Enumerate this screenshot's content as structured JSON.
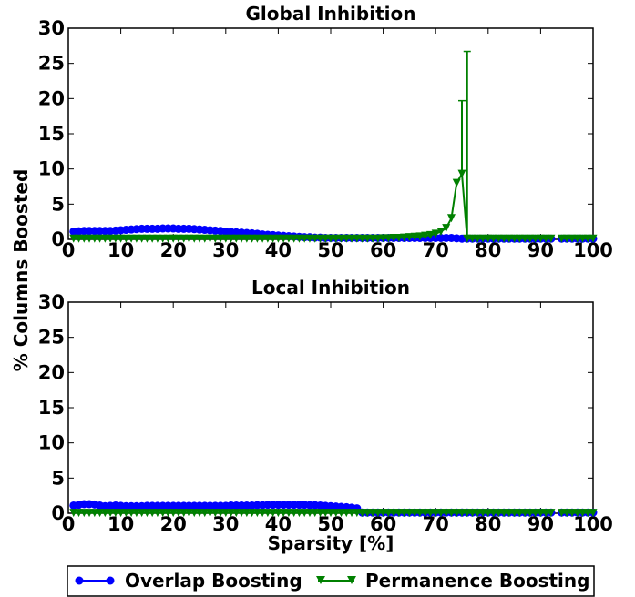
{
  "chart_data": [
    {
      "type": "line",
      "title": "Global Inhibition",
      "xlabel": "",
      "ylabel": "% Columns Boosted",
      "xlim": [
        0,
        100
      ],
      "ylim": [
        0,
        30
      ],
      "xticks": [
        0,
        10,
        20,
        30,
        40,
        50,
        60,
        70,
        80,
        90,
        100
      ],
      "yticks": [
        0,
        5,
        10,
        15,
        20,
        25,
        30
      ],
      "grid": false,
      "series": [
        {
          "name": "Overlap Boosting",
          "color": "#0000ff",
          "marker": "circle",
          "x": [
            1,
            2,
            3,
            4,
            5,
            6,
            7,
            8,
            9,
            10,
            11,
            12,
            13,
            14,
            15,
            16,
            17,
            18,
            19,
            20,
            21,
            22,
            23,
            24,
            25,
            26,
            27,
            28,
            29,
            30,
            31,
            32,
            33,
            34,
            35,
            36,
            37,
            38,
            39,
            40,
            41,
            42,
            43,
            44,
            45,
            46,
            47,
            48,
            49,
            50,
            51,
            52,
            53,
            54,
            55,
            56,
            57,
            58,
            59,
            60,
            61,
            62,
            63,
            64,
            65,
            66,
            67,
            68,
            69,
            70,
            71,
            72,
            73,
            74,
            75,
            76,
            77,
            78,
            79,
            80,
            81,
            82,
            83,
            84,
            85,
            86,
            87,
            88,
            89,
            90,
            91,
            92,
            94,
            95,
            96,
            97,
            98,
            99,
            100
          ],
          "y": [
            1.1,
            1.15,
            1.2,
            1.2,
            1.2,
            1.2,
            1.2,
            1.2,
            1.25,
            1.3,
            1.35,
            1.4,
            1.45,
            1.5,
            1.5,
            1.5,
            1.5,
            1.55,
            1.55,
            1.55,
            1.5,
            1.5,
            1.5,
            1.45,
            1.4,
            1.35,
            1.3,
            1.25,
            1.2,
            1.1,
            1.05,
            1.0,
            0.95,
            0.9,
            0.85,
            0.8,
            0.7,
            0.65,
            0.6,
            0.55,
            0.5,
            0.45,
            0.4,
            0.35,
            0.3,
            0.3,
            0.25,
            0.25,
            0.2,
            0.2,
            0.2,
            0.2,
            0.2,
            0.2,
            0.2,
            0.2,
            0.2,
            0.2,
            0.2,
            0.2,
            0.2,
            0.2,
            0.2,
            0.2,
            0.2,
            0.2,
            0.2,
            0.2,
            0.2,
            0.2,
            0.2,
            0.2,
            0.2,
            0.15,
            0.1,
            0.1,
            0.1,
            0.1,
            0.1,
            0.1,
            0.1,
            0.1,
            0.1,
            0.1,
            0.1,
            0.1,
            0.1,
            0.1,
            0.1,
            0.1,
            0.1,
            0.1,
            0.1,
            0.1,
            0.1,
            0.1,
            0.1,
            0.1,
            0.1
          ]
        },
        {
          "name": "Permanence Boosting",
          "color": "#008000",
          "marker": "triangle-down",
          "x": [
            1,
            2,
            3,
            4,
            5,
            6,
            7,
            8,
            9,
            10,
            11,
            12,
            13,
            14,
            15,
            16,
            17,
            18,
            19,
            20,
            21,
            22,
            23,
            24,
            25,
            26,
            27,
            28,
            29,
            30,
            31,
            32,
            33,
            34,
            35,
            36,
            37,
            38,
            39,
            40,
            41,
            42,
            43,
            44,
            45,
            46,
            47,
            48,
            49,
            50,
            51,
            52,
            53,
            54,
            55,
            56,
            57,
            58,
            59,
            60,
            61,
            62,
            63,
            64,
            65,
            66,
            67,
            68,
            69,
            70,
            71,
            72,
            73,
            74,
            75,
            76,
            77,
            78,
            79,
            80,
            81,
            82,
            83,
            84,
            85,
            86,
            87,
            88,
            89,
            90,
            91,
            92,
            94,
            95,
            96,
            97,
            98,
            99,
            100
          ],
          "y": [
            0.1,
            0.1,
            0.1,
            0.1,
            0.1,
            0.1,
            0.1,
            0.1,
            0.1,
            0.1,
            0.1,
            0.1,
            0.1,
            0.1,
            0.1,
            0.1,
            0.1,
            0.1,
            0.1,
            0.1,
            0.1,
            0.1,
            0.1,
            0.1,
            0.1,
            0.1,
            0.1,
            0.1,
            0.1,
            0.1,
            0.1,
            0.1,
            0.1,
            0.1,
            0.1,
            0.1,
            0.1,
            0.1,
            0.1,
            0.1,
            0.1,
            0.1,
            0.1,
            0.1,
            0.1,
            0.1,
            0.1,
            0.1,
            0.1,
            0.1,
            0.1,
            0.1,
            0.1,
            0.1,
            0.1,
            0.1,
            0.1,
            0.1,
            0.1,
            0.15,
            0.15,
            0.2,
            0.2,
            0.25,
            0.3,
            0.35,
            0.4,
            0.5,
            0.6,
            0.8,
            1.1,
            1.6,
            3.0,
            8.0,
            9.3,
            0.1,
            0.1,
            0.1,
            0.1,
            0.1,
            0.1,
            0.1,
            0.1,
            0.1,
            0.1,
            0.1,
            0.1,
            0.1,
            0.1,
            0.1,
            0.1,
            0.1,
            0.1,
            0.1,
            0.1,
            0.1,
            0.1,
            0.1,
            0.1
          ],
          "error_bars": [
            {
              "x": 75,
              "upper": 19.7
            },
            {
              "x": 76,
              "upper": 26.7
            }
          ]
        }
      ]
    },
    {
      "type": "line",
      "title": "Local Inhibition",
      "xlabel": "Sparsity [%]",
      "ylabel": "% Columns Boosted",
      "xlim": [
        0,
        100
      ],
      "ylim": [
        0,
        30
      ],
      "xticks": [
        0,
        10,
        20,
        30,
        40,
        50,
        60,
        70,
        80,
        90,
        100
      ],
      "yticks": [
        0,
        5,
        10,
        15,
        20,
        25,
        30
      ],
      "grid": false,
      "series": [
        {
          "name": "Overlap Boosting",
          "color": "#0000ff",
          "marker": "circle",
          "x": [
            1,
            2,
            3,
            4,
            5,
            6,
            7,
            8,
            9,
            10,
            11,
            12,
            13,
            14,
            15,
            16,
            17,
            18,
            19,
            20,
            21,
            22,
            23,
            24,
            25,
            26,
            27,
            28,
            29,
            30,
            31,
            32,
            33,
            34,
            35,
            36,
            37,
            38,
            39,
            40,
            41,
            42,
            43,
            44,
            45,
            46,
            47,
            48,
            49,
            50,
            51,
            52,
            53,
            54,
            55,
            56,
            57,
            58,
            59,
            60,
            61,
            62,
            63,
            64,
            65,
            66,
            67,
            68,
            69,
            70,
            71,
            72,
            73,
            74,
            75,
            76,
            77,
            78,
            79,
            80,
            81,
            82,
            83,
            84,
            85,
            86,
            87,
            88,
            89,
            90,
            91,
            92,
            94,
            95,
            96,
            97,
            98,
            99,
            100
          ],
          "y": [
            1.1,
            1.2,
            1.3,
            1.3,
            1.25,
            1.1,
            1.0,
            1.05,
            1.1,
            1.05,
            1.0,
            1.0,
            1.0,
            1.0,
            1.05,
            1.05,
            1.05,
            1.05,
            1.05,
            1.05,
            1.05,
            1.05,
            1.05,
            1.05,
            1.05,
            1.05,
            1.05,
            1.05,
            1.05,
            1.05,
            1.1,
            1.1,
            1.1,
            1.1,
            1.1,
            1.15,
            1.15,
            1.2,
            1.2,
            1.2,
            1.2,
            1.2,
            1.2,
            1.2,
            1.2,
            1.15,
            1.15,
            1.1,
            1.05,
            1.0,
            0.95,
            0.9,
            0.85,
            0.8,
            0.7,
            0.1,
            0.1,
            0.1,
            0.1,
            0.1,
            0.1,
            0.1,
            0.1,
            0.1,
            0.1,
            0.1,
            0.1,
            0.1,
            0.1,
            0.1,
            0.1,
            0.1,
            0.1,
            0.1,
            0.1,
            0.1,
            0.1,
            0.1,
            0.1,
            0.1,
            0.1,
            0.1,
            0.1,
            0.1,
            0.1,
            0.1,
            0.1,
            0.1,
            0.1,
            0.1,
            0.1,
            0.1,
            0.1,
            0.1,
            0.1,
            0.1,
            0.1,
            0.1,
            0.1
          ]
        },
        {
          "name": "Permanence Boosting",
          "color": "#008000",
          "marker": "triangle-down",
          "x": [
            1,
            2,
            3,
            4,
            5,
            6,
            7,
            8,
            9,
            10,
            11,
            12,
            13,
            14,
            15,
            16,
            17,
            18,
            19,
            20,
            21,
            22,
            23,
            24,
            25,
            26,
            27,
            28,
            29,
            30,
            31,
            32,
            33,
            34,
            35,
            36,
            37,
            38,
            39,
            40,
            41,
            42,
            43,
            44,
            45,
            46,
            47,
            48,
            49,
            50,
            51,
            52,
            53,
            54,
            55,
            56,
            57,
            58,
            59,
            60,
            61,
            62,
            63,
            64,
            65,
            66,
            67,
            68,
            69,
            70,
            71,
            72,
            73,
            74,
            75,
            76,
            77,
            78,
            79,
            80,
            81,
            82,
            83,
            84,
            85,
            86,
            87,
            88,
            89,
            90,
            91,
            92,
            94,
            95,
            96,
            97,
            98,
            99,
            100
          ],
          "y": [
            0.05,
            0.05,
            0.05,
            0.05,
            0.05,
            0.05,
            0.05,
            0.05,
            0.05,
            0.05,
            0.05,
            0.05,
            0.05,
            0.05,
            0.05,
            0.05,
            0.05,
            0.05,
            0.05,
            0.05,
            0.05,
            0.05,
            0.05,
            0.05,
            0.05,
            0.05,
            0.05,
            0.05,
            0.05,
            0.05,
            0.05,
            0.05,
            0.05,
            0.05,
            0.05,
            0.05,
            0.05,
            0.05,
            0.05,
            0.05,
            0.05,
            0.05,
            0.05,
            0.05,
            0.05,
            0.05,
            0.05,
            0.05,
            0.05,
            0.05,
            0.05,
            0.05,
            0.05,
            0.05,
            0.05,
            0.05,
            0.05,
            0.05,
            0.05,
            0.05,
            0.05,
            0.05,
            0.05,
            0.05,
            0.05,
            0.05,
            0.05,
            0.05,
            0.05,
            0.05,
            0.05,
            0.05,
            0.05,
            0.05,
            0.05,
            0.05,
            0.05,
            0.05,
            0.05,
            0.05,
            0.05,
            0.05,
            0.05,
            0.05,
            0.05,
            0.05,
            0.05,
            0.05,
            0.05,
            0.05,
            0.05,
            0.05,
            0.05,
            0.05,
            0.05,
            0.05,
            0.05,
            0.05,
            0.05
          ]
        }
      ]
    }
  ],
  "legend": {
    "placement": "bottom-center",
    "entries": [
      "Overlap Boosting",
      "Permanence Boosting"
    ]
  }
}
